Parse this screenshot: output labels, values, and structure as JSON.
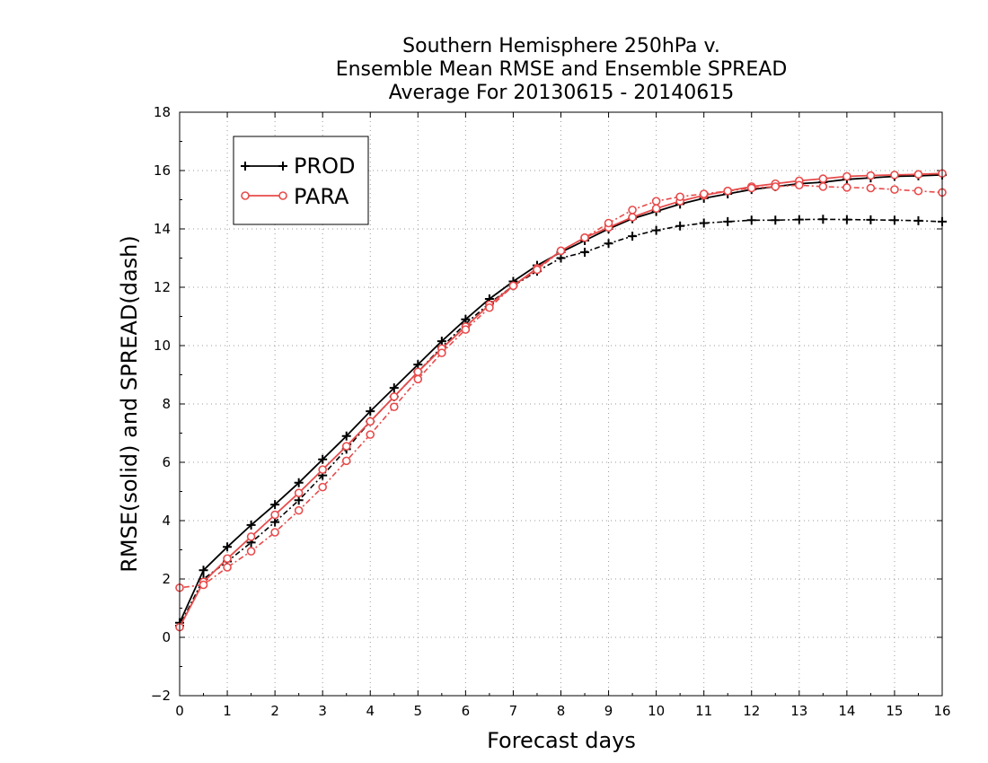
{
  "chart_data": {
    "type": "line",
    "title_lines": [
      "Southern Hemisphere 250hPa v.",
      "Ensemble Mean RMSE and Ensemble SPREAD",
      "Average For 20130615 - 20140615"
    ],
    "xlabel": "Forecast days",
    "ylabel": "RMSE(solid) and SPREAD(dash)",
    "xlim": [
      0,
      16
    ],
    "ylim": [
      -2,
      18
    ],
    "x_ticks": [
      0,
      1,
      2,
      3,
      4,
      5,
      6,
      7,
      8,
      9,
      10,
      11,
      12,
      13,
      14,
      15,
      16
    ],
    "y_ticks": [
      -2,
      0,
      2,
      4,
      6,
      8,
      10,
      12,
      14,
      16,
      18
    ],
    "grid": true,
    "legend_position": "top-left",
    "x": [
      0,
      0.5,
      1,
      1.5,
      2,
      2.5,
      3,
      3.5,
      4,
      4.5,
      5,
      5.5,
      6,
      6.5,
      7,
      7.5,
      8,
      8.5,
      9,
      9.5,
      10,
      10.5,
      11,
      11.5,
      12,
      12.5,
      13,
      13.5,
      14,
      14.5,
      15,
      15.5,
      16
    ],
    "series": [
      {
        "name": "PROD",
        "metric": "rmse",
        "color": "#000000",
        "marker": "plus",
        "style": "solid",
        "values": [
          0.5,
          2.3,
          3.1,
          3.85,
          4.55,
          5.3,
          6.1,
          6.9,
          7.75,
          8.55,
          9.35,
          10.15,
          10.9,
          11.6,
          12.2,
          12.75,
          13.2,
          13.6,
          14.0,
          14.35,
          14.6,
          14.85,
          15.05,
          15.2,
          15.35,
          15.45,
          15.55,
          15.6,
          15.7,
          15.75,
          15.8,
          15.82,
          15.85
        ]
      },
      {
        "name": "PROD",
        "metric": "spread",
        "color": "#000000",
        "marker": "plus",
        "style": "dash",
        "values": [
          0.4,
          2.0,
          2.6,
          3.25,
          3.95,
          4.7,
          5.55,
          6.45,
          7.4,
          8.25,
          9.1,
          9.95,
          10.75,
          11.45,
          12.05,
          12.55,
          13.0,
          13.2,
          13.5,
          13.75,
          13.95,
          14.1,
          14.2,
          14.25,
          14.3,
          14.3,
          14.32,
          14.33,
          14.32,
          14.31,
          14.3,
          14.28,
          14.25
        ]
      },
      {
        "name": "PARA",
        "metric": "rmse",
        "color": "#e84a4a",
        "marker": "circle",
        "style": "solid",
        "values": [
          0.35,
          1.9,
          2.7,
          3.45,
          4.2,
          4.95,
          5.75,
          6.55,
          7.4,
          8.25,
          9.1,
          9.9,
          10.65,
          11.4,
          12.05,
          12.65,
          13.25,
          13.7,
          14.05,
          14.4,
          14.7,
          14.95,
          15.15,
          15.3,
          15.45,
          15.55,
          15.65,
          15.72,
          15.8,
          15.83,
          15.85,
          15.87,
          15.9
        ]
      },
      {
        "name": "PARA",
        "metric": "spread",
        "color": "#e84a4a",
        "marker": "circle",
        "style": "dash",
        "values": [
          1.7,
          1.8,
          2.4,
          2.95,
          3.6,
          4.35,
          5.15,
          6.05,
          6.95,
          7.9,
          8.85,
          9.75,
          10.55,
          11.3,
          12.05,
          12.6,
          13.25,
          13.7,
          14.2,
          14.65,
          14.95,
          15.1,
          15.2,
          15.3,
          15.4,
          15.45,
          15.5,
          15.45,
          15.42,
          15.4,
          15.35,
          15.3,
          15.25
        ]
      }
    ],
    "legend": [
      {
        "name": "PROD",
        "color": "#000000",
        "marker": "plus"
      },
      {
        "name": "PARA",
        "color": "#e84a4a",
        "marker": "circle"
      }
    ]
  }
}
